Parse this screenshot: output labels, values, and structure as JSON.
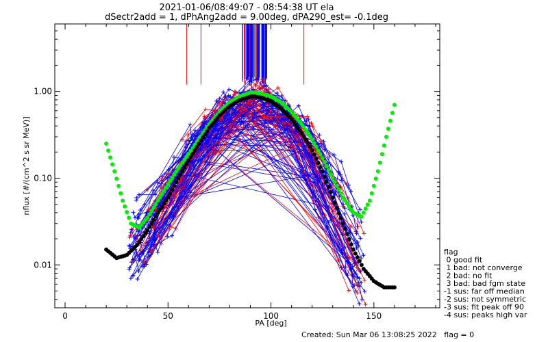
{
  "chart_data": {
    "type": "scatter",
    "title": "2021-01-06/08:49:07 - 08:54:38 UT ela",
    "subtitle": "dSectr2add = 1, dPhAng2add = 9.00deg, dPA290_est=  -0.1deg",
    "xlabel": "PA [deg]",
    "ylabel": "nflux [#/(cm^2 s sr MeV)]",
    "xlim": [
      -5,
      182
    ],
    "ylim": [
      0.0032,
      6.0
    ],
    "y_scale": "log",
    "grid": false,
    "x_ticks": [
      0,
      50,
      100,
      150
    ],
    "x_tick_labels": [
      "0",
      "50",
      "100",
      "150"
    ],
    "y_ticks": [
      0.01,
      0.1,
      1.0
    ],
    "y_tick_labels": [
      "0.01",
      "0.10",
      "1.00"
    ],
    "series": [
      {
        "color": "#00ee00",
        "x": [
          20,
          24,
          28,
          32,
          36,
          40,
          45,
          50,
          55,
          60,
          65,
          70,
          75,
          80,
          85,
          90,
          92,
          95,
          100,
          105,
          110,
          115,
          120,
          125,
          130,
          135,
          140,
          144,
          148,
          152,
          156,
          160
        ],
        "y": [
          0.25,
          0.12,
          0.055,
          0.03,
          0.027,
          0.035,
          0.055,
          0.085,
          0.13,
          0.19,
          0.28,
          0.42,
          0.58,
          0.75,
          0.88,
          0.97,
          0.97,
          0.95,
          0.88,
          0.75,
          0.58,
          0.42,
          0.28,
          0.17,
          0.1,
          0.06,
          0.04,
          0.036,
          0.055,
          0.12,
          0.3,
          0.7
        ]
      },
      {
        "color": "#000000",
        "x": [
          20,
          25,
          30,
          35,
          40,
          45,
          50,
          55,
          60,
          65,
          70,
          75,
          80,
          85,
          90,
          92,
          95,
          100,
          105,
          110,
          115,
          120,
          125,
          130,
          135,
          140,
          145,
          150,
          155,
          160
        ],
        "y": [
          0.015,
          0.012,
          0.013,
          0.017,
          0.025,
          0.04,
          0.06,
          0.1,
          0.16,
          0.25,
          0.38,
          0.53,
          0.68,
          0.8,
          0.87,
          0.87,
          0.85,
          0.77,
          0.63,
          0.48,
          0.33,
          0.21,
          0.12,
          0.06,
          0.03,
          0.015,
          0.009,
          0.0065,
          0.0055,
          0.0055
        ]
      }
    ],
    "scatter_styles": [
      {
        "color": "#0000ff"
      },
      {
        "color": "#ff0000"
      }
    ],
    "legend": {
      "placement": "bottom-right",
      "entries": [
        "flag",
        " 0 good fit",
        " 1 bad: not converge",
        " 2 bad: no fit",
        " 3 bad: bad fgm state",
        "-1 sus: far off median",
        "-2 sus: not symmetric",
        "-3 sus: fit peak off 90",
        "-4 sus: peaks high var"
      ]
    },
    "footer": "Created: Sun Mar 06 13:08:25 2022   flag = 0"
  }
}
